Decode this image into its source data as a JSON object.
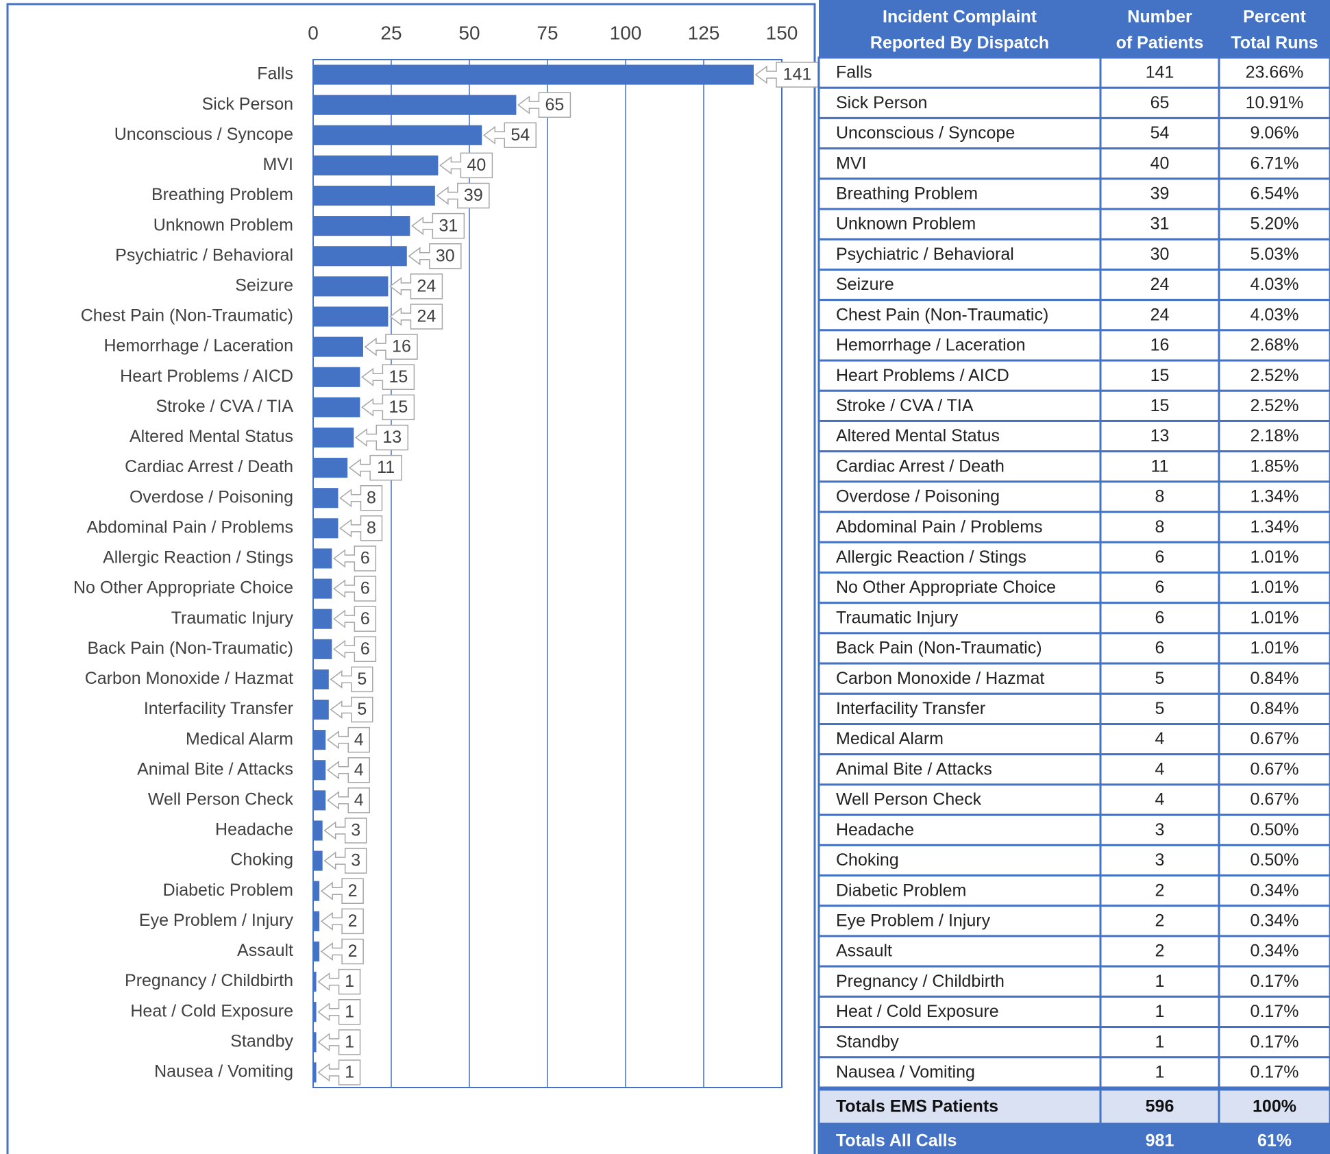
{
  "chart_data": {
    "type": "barh",
    "categories": [
      "Falls",
      "Sick Person",
      "Unconscious / Syncope",
      "MVI",
      "Breathing Problem",
      "Unknown Problem",
      "Psychiatric / Behavioral",
      "Seizure",
      "Chest Pain (Non-Traumatic)",
      "Hemorrhage / Laceration",
      "Heart Problems / AICD",
      "Stroke / CVA / TIA",
      "Altered Mental Status",
      "Cardiac Arrest / Death",
      "Overdose / Poisoning",
      "Abdominal Pain / Problems",
      "Allergic Reaction / Stings",
      "No Other Appropriate Choice",
      "Traumatic Injury",
      "Back Pain (Non-Traumatic)",
      "Carbon Monoxide / Hazmat",
      "Interfacility Transfer",
      "Medical Alarm",
      "Animal Bite / Attacks",
      "Well Person Check",
      "Headache",
      "Choking",
      "Diabetic Problem",
      "Eye Problem / Injury",
      "Assault",
      "Pregnancy / Childbirth",
      "Heat / Cold Exposure",
      "Standby",
      "Nausea / Vomiting"
    ],
    "values": [
      141,
      65,
      54,
      40,
      39,
      31,
      30,
      24,
      24,
      16,
      15,
      15,
      13,
      11,
      8,
      8,
      6,
      6,
      6,
      6,
      5,
      5,
      4,
      4,
      4,
      3,
      3,
      2,
      2,
      2,
      1,
      1,
      1,
      1
    ],
    "color": "#4472c4",
    "xlim": [
      0,
      150
    ],
    "xticks": [
      0,
      25,
      50,
      75,
      100,
      125,
      150
    ],
    "grid": true
  },
  "table": {
    "headers": [
      [
        "Incident Complaint",
        "Reported By Dispatch"
      ],
      [
        "Number",
        "of Patients"
      ],
      [
        "Percent",
        "Total Runs"
      ]
    ],
    "rows": [
      [
        "Falls",
        141,
        "23.66%"
      ],
      [
        "Sick Person",
        65,
        "10.91%"
      ],
      [
        "Unconscious / Syncope",
        54,
        "9.06%"
      ],
      [
        "MVI",
        40,
        "6.71%"
      ],
      [
        "Breathing Problem",
        39,
        "6.54%"
      ],
      [
        "Unknown Problem",
        31,
        "5.20%"
      ],
      [
        "Psychiatric / Behavioral",
        30,
        "5.03%"
      ],
      [
        "Seizure",
        24,
        "4.03%"
      ],
      [
        "Chest Pain (Non-Traumatic)",
        24,
        "4.03%"
      ],
      [
        "Hemorrhage / Laceration",
        16,
        "2.68%"
      ],
      [
        "Heart Problems / AICD",
        15,
        "2.52%"
      ],
      [
        "Stroke / CVA / TIA",
        15,
        "2.52%"
      ],
      [
        "Altered Mental Status",
        13,
        "2.18%"
      ],
      [
        "Cardiac Arrest / Death",
        11,
        "1.85%"
      ],
      [
        "Overdose / Poisoning",
        8,
        "1.34%"
      ],
      [
        "Abdominal Pain / Problems",
        8,
        "1.34%"
      ],
      [
        "Allergic Reaction / Stings",
        6,
        "1.01%"
      ],
      [
        "No Other Appropriate Choice",
        6,
        "1.01%"
      ],
      [
        "Traumatic Injury",
        6,
        "1.01%"
      ],
      [
        "Back Pain (Non-Traumatic)",
        6,
        "1.01%"
      ],
      [
        "Carbon Monoxide / Hazmat",
        5,
        "0.84%"
      ],
      [
        "Interfacility Transfer",
        5,
        "0.84%"
      ],
      [
        "Medical Alarm",
        4,
        "0.67%"
      ],
      [
        "Animal Bite / Attacks",
        4,
        "0.67%"
      ],
      [
        "Well Person Check",
        4,
        "0.67%"
      ],
      [
        "Headache",
        3,
        "0.50%"
      ],
      [
        "Choking",
        3,
        "0.50%"
      ],
      [
        "Diabetic Problem",
        2,
        "0.34%"
      ],
      [
        "Eye Problem / Injury",
        2,
        "0.34%"
      ],
      [
        "Assault",
        2,
        "0.34%"
      ],
      [
        "Pregnancy / Childbirth",
        1,
        "0.17%"
      ],
      [
        "Heat / Cold Exposure",
        1,
        "0.17%"
      ],
      [
        "Standby",
        1,
        "0.17%"
      ],
      [
        "Nausea / Vomiting",
        1,
        "0.17%"
      ]
    ],
    "totals": [
      [
        "Totals EMS Patients",
        596,
        "100%"
      ],
      [
        "Totals All Calls",
        981,
        "61%"
      ]
    ]
  }
}
